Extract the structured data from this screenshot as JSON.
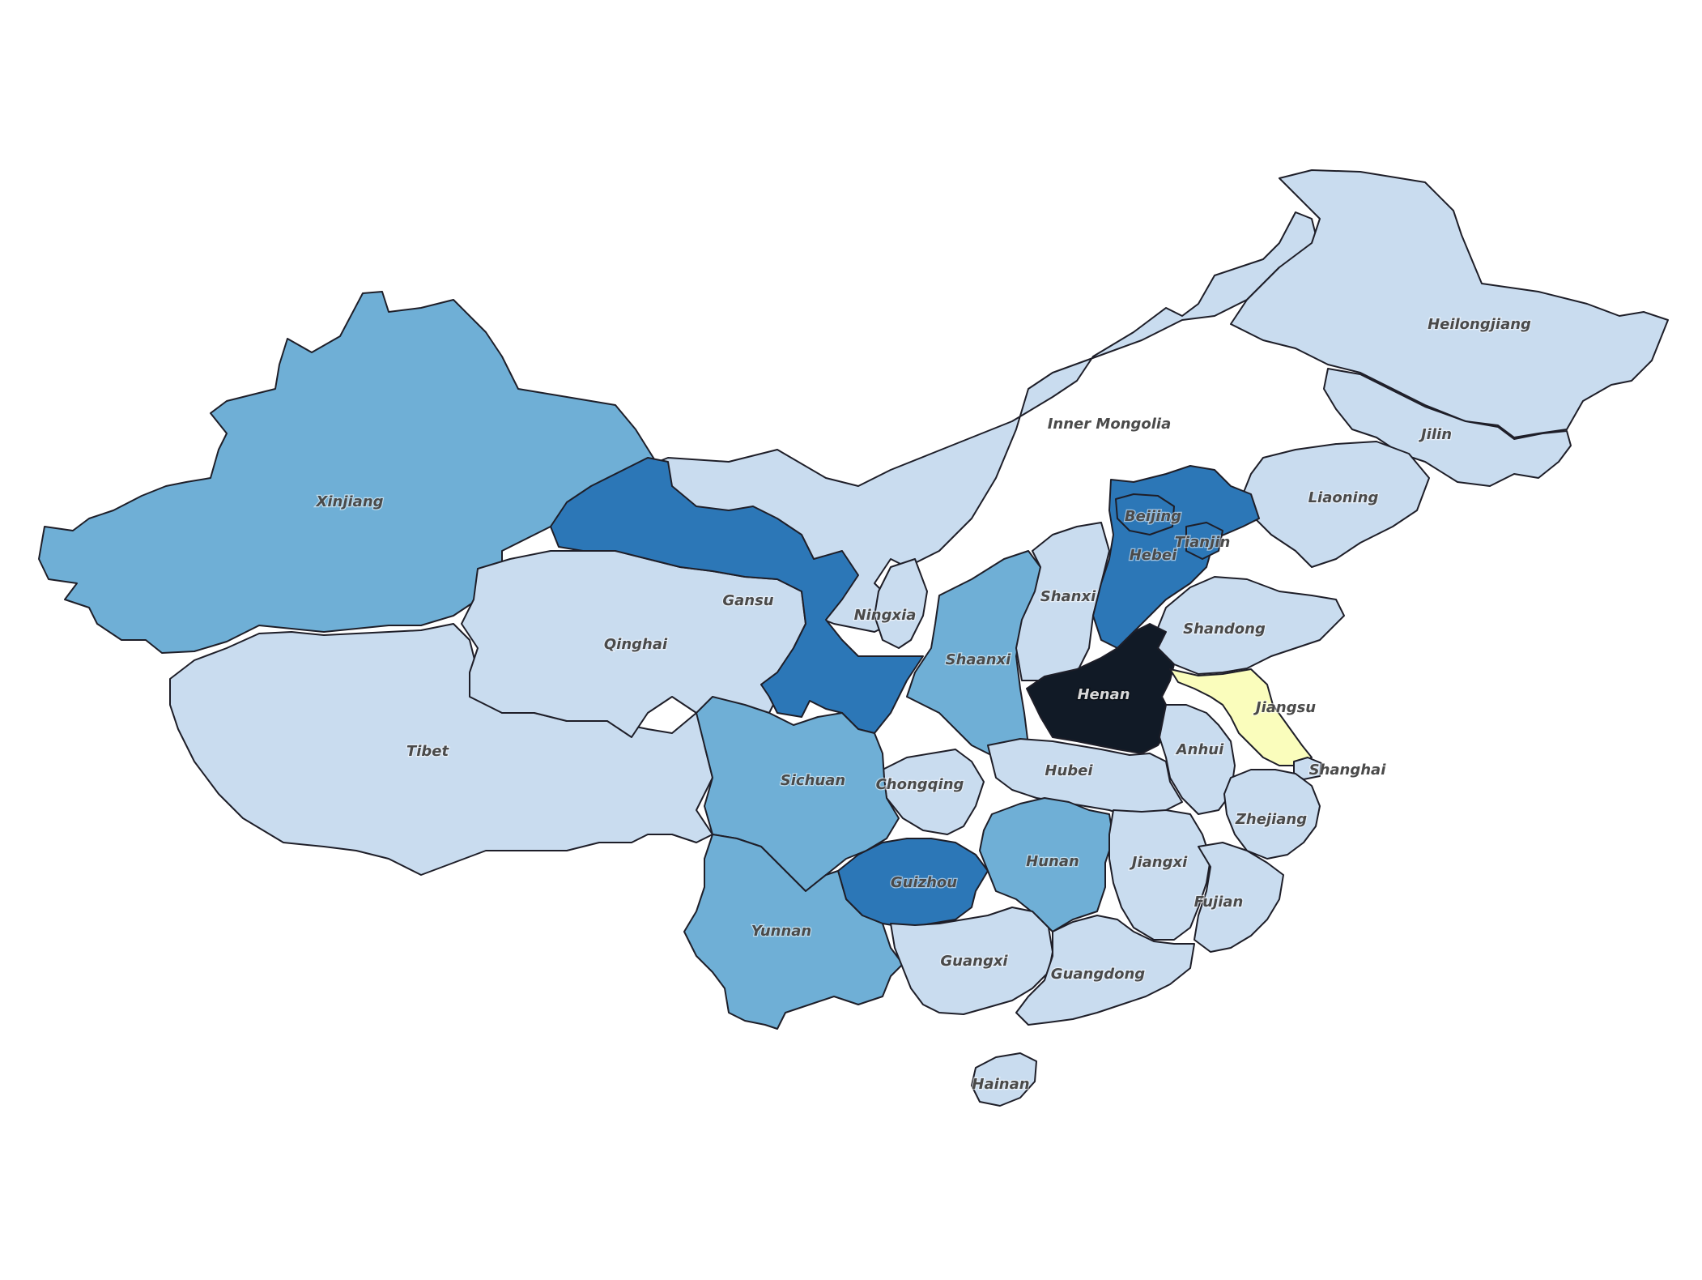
{
  "map": {
    "colors": {
      "lightest": "#c9dcef",
      "light": "#6fafd6",
      "medium": "#2c77b7",
      "darkest": "#111a26",
      "highlight": "#fafdbc"
    },
    "regions": [
      {
        "id": "xinjiang",
        "label": "Xinjiang",
        "level": "light"
      },
      {
        "id": "tibet",
        "label": "Tibet",
        "level": "lightest"
      },
      {
        "id": "qinghai",
        "label": "Qinghai",
        "level": "lightest"
      },
      {
        "id": "gansu",
        "label": "Gansu",
        "level": "medium"
      },
      {
        "id": "inner-mongolia",
        "label": "Inner Mongolia",
        "level": "lightest"
      },
      {
        "id": "heilongjiang",
        "label": "Heilongjiang",
        "level": "lightest"
      },
      {
        "id": "jilin",
        "label": "Jilin",
        "level": "lightest"
      },
      {
        "id": "liaoning",
        "label": "Liaoning",
        "level": "lightest"
      },
      {
        "id": "beijing",
        "label": "Beijing",
        "level": "medium"
      },
      {
        "id": "tianjin",
        "label": "Tianjin",
        "level": "medium"
      },
      {
        "id": "hebei",
        "label": "Hebei",
        "level": "medium"
      },
      {
        "id": "shanxi",
        "label": "Shanxi",
        "level": "lightest"
      },
      {
        "id": "shandong",
        "label": "Shandong",
        "level": "lightest"
      },
      {
        "id": "ningxia",
        "label": "Ningxia",
        "level": "lightest"
      },
      {
        "id": "shaanxi",
        "label": "Shaanxi",
        "level": "light"
      },
      {
        "id": "henan",
        "label": "Henan",
        "level": "darkest"
      },
      {
        "id": "jiangsu",
        "label": "Jiangsu",
        "level": "highlight"
      },
      {
        "id": "shanghai",
        "label": "Shanghai",
        "level": "lightest"
      },
      {
        "id": "anhui",
        "label": "Anhui",
        "level": "lightest"
      },
      {
        "id": "hubei",
        "label": "Hubei",
        "level": "lightest"
      },
      {
        "id": "sichuan",
        "label": "Sichuan",
        "level": "light"
      },
      {
        "id": "chongqing",
        "label": "Chongqing",
        "level": "lightest"
      },
      {
        "id": "zhejiang",
        "label": "Zhejiang",
        "level": "lightest"
      },
      {
        "id": "jiangxi",
        "label": "Jiangxi",
        "level": "lightest"
      },
      {
        "id": "hunan",
        "label": "Hunan",
        "level": "light"
      },
      {
        "id": "guizhou",
        "label": "Guizhou",
        "level": "medium"
      },
      {
        "id": "yunnan",
        "label": "Yunnan",
        "level": "light"
      },
      {
        "id": "fujian",
        "label": "Fujian",
        "level": "lightest"
      },
      {
        "id": "guangxi",
        "label": "Guangxi",
        "level": "lightest"
      },
      {
        "id": "guangdong",
        "label": "Guangdong",
        "level": "lightest"
      },
      {
        "id": "hainan",
        "label": "Hainan",
        "level": "lightest"
      }
    ]
  }
}
